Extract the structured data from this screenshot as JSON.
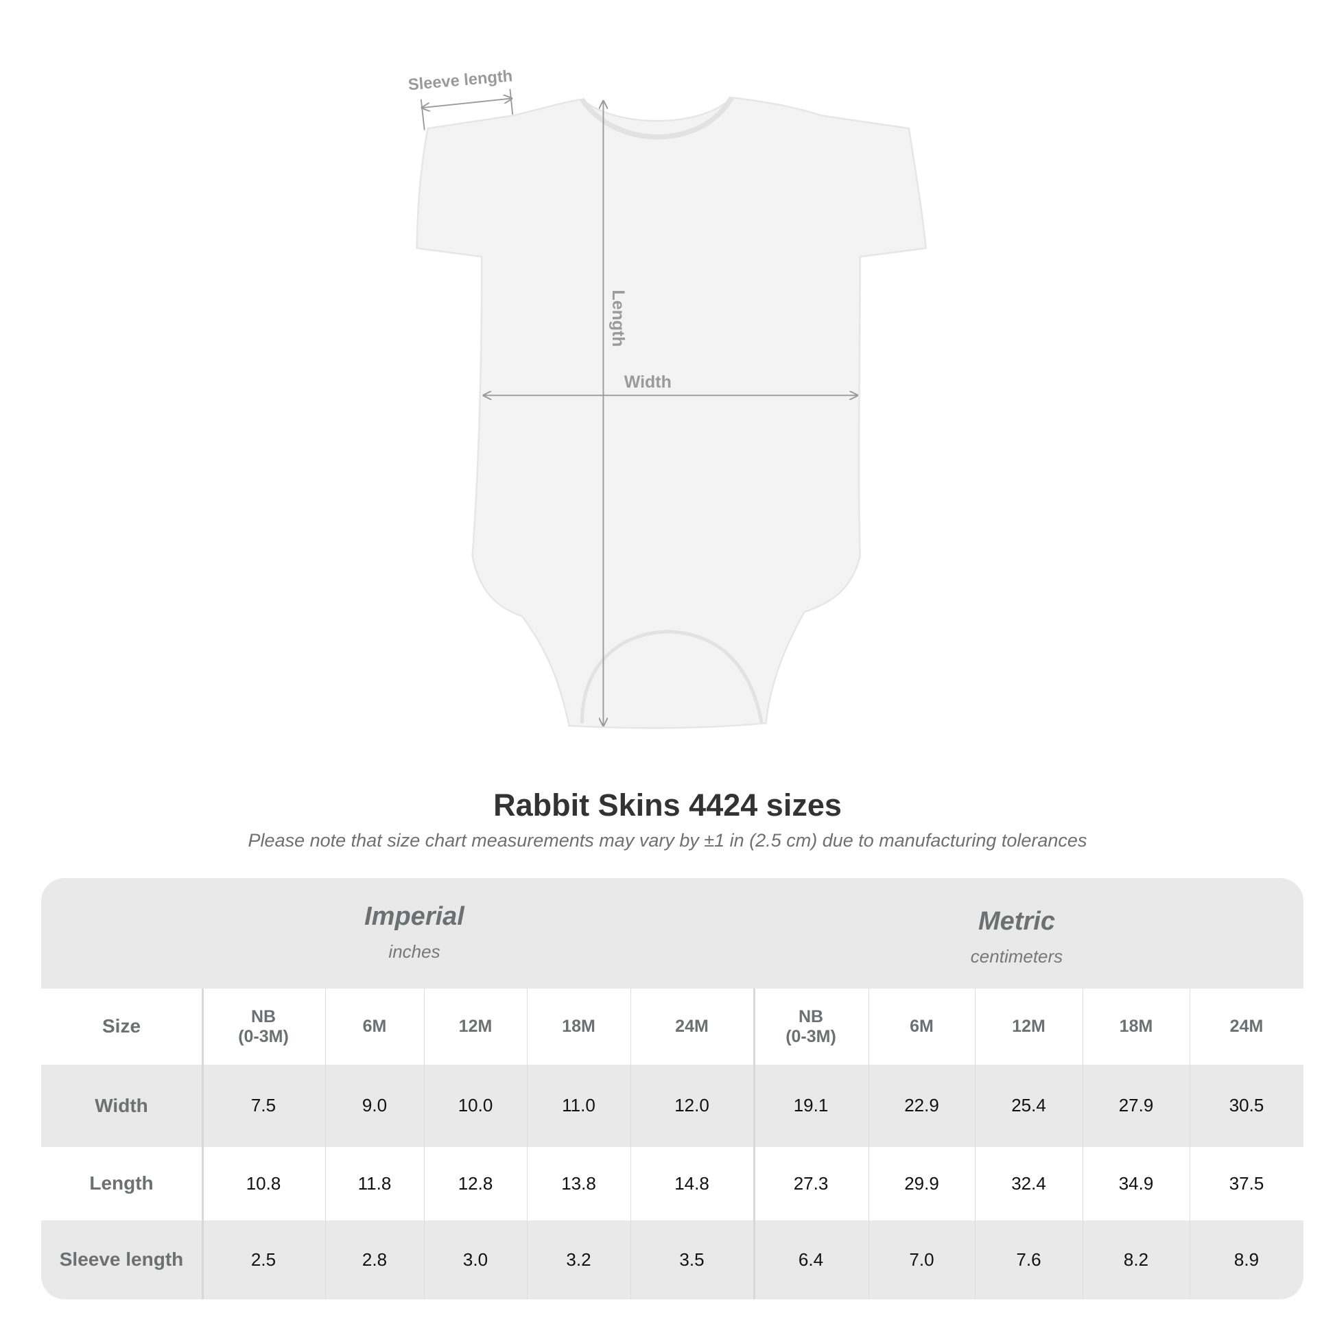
{
  "diagram": {
    "labels": {
      "sleeve_length": "Sleeve length",
      "length": "Length",
      "width": "Width"
    },
    "colors": {
      "garment": "#f3f3f3",
      "measure_line": "#9a9a9a"
    }
  },
  "title": "Rabbit Skins 4424 sizes",
  "subtitle": "Please note that size chart measurements may vary by ±1 in (2.5 cm) due to manufacturing tolerances",
  "table": {
    "imperial": {
      "name": "Imperial",
      "unit": "inches"
    },
    "metric": {
      "name": "Metric",
      "unit": "centimeters"
    },
    "size_label": "Size",
    "sizes": [
      "NB\n(0-3M)",
      "6M",
      "12M",
      "18M",
      "24M",
      "NB\n(0-3M)",
      "6M",
      "12M",
      "18M",
      "24M"
    ],
    "rows": [
      {
        "label": "Width",
        "values": [
          "7.5",
          "9.0",
          "10.0",
          "11.0",
          "12.0",
          "19.1",
          "22.9",
          "25.4",
          "27.9",
          "30.5"
        ]
      },
      {
        "label": "Length",
        "values": [
          "10.8",
          "11.8",
          "12.8",
          "13.8",
          "14.8",
          "27.3",
          "29.9",
          "32.4",
          "34.9",
          "37.5"
        ]
      },
      {
        "label": "Sleeve length",
        "values": [
          "2.5",
          "2.8",
          "3.0",
          "3.2",
          "3.5",
          "6.4",
          "7.0",
          "7.6",
          "8.2",
          "8.9"
        ]
      }
    ],
    "colors": {
      "band": "#e9e9e9",
      "header_text": "#6d7070"
    }
  }
}
